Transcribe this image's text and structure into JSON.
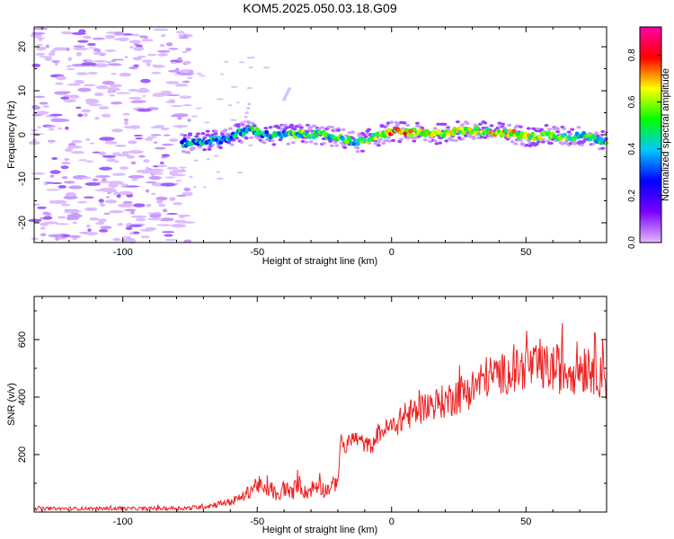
{
  "title": "KOM5.2025.050.03.18.G09",
  "chart_data": [
    {
      "type": "heatmap",
      "xlabel": "Height of straight line (km)",
      "ylabel": "Frequency (Hz)",
      "xlim": [
        -133,
        80
      ],
      "ylim": [
        -24.5,
        24.5
      ],
      "xticks": [
        -100,
        -50,
        0,
        50
      ],
      "yticks": [
        -20,
        -10,
        0,
        10,
        20
      ],
      "colorbar": {
        "label": "Normalized spectral amplitude",
        "range": [
          0,
          0.92
        ],
        "ticks": [
          "0.0",
          "0.2",
          "0.4",
          "0.6",
          "0.8"
        ],
        "colors": [
          "#e6b8ff",
          "#7a00ff",
          "#0000ff",
          "#00c8ff",
          "#00ff00",
          "#ffff00",
          "#ff0000",
          "#ff00aa"
        ]
      },
      "trace": {
        "x": [
          -78,
          -70,
          -62,
          -56,
          -52,
          -48,
          -44,
          -40,
          -30,
          -20,
          -12,
          -6,
          0,
          8,
          15,
          22,
          30,
          38,
          45,
          52,
          58,
          64,
          72,
          80
        ],
        "freq": [
          -2.0,
          -1.5,
          -1.0,
          0.5,
          1.2,
          0.2,
          -0.3,
          0.0,
          0.2,
          -0.6,
          -1.8,
          -0.5,
          0.8,
          0.5,
          0.0,
          0.7,
          1.0,
          0.6,
          0.2,
          -0.5,
          0.0,
          -0.4,
          -0.3,
          -1.5
        ],
        "amp": [
          0.35,
          0.35,
          0.3,
          0.4,
          0.45,
          0.38,
          0.4,
          0.42,
          0.5,
          0.45,
          0.45,
          0.55,
          0.7,
          0.65,
          0.6,
          0.55,
          0.55,
          0.6,
          0.62,
          0.6,
          0.55,
          0.5,
          0.45,
          0.45
        ]
      }
    },
    {
      "type": "line",
      "xlabel": "Height of straight line (km)",
      "ylabel": "SNR (v/v)",
      "xlim": [
        -133,
        80
      ],
      "ylim": [
        0,
        750
      ],
      "xticks": [
        -100,
        -50,
        0,
        50
      ],
      "yticks": [
        200,
        400,
        600
      ],
      "color": "#ee2222",
      "x": [
        -133,
        -110,
        -90,
        -75,
        -68,
        -60,
        -55,
        -50,
        -47,
        -45,
        -42,
        -40,
        -37,
        -35,
        -32,
        -30,
        -27,
        -25,
        -22,
        -20,
        -19,
        -17,
        -15,
        -12,
        -10,
        -7,
        -5,
        -2,
        0,
        5,
        10,
        15,
        20,
        25,
        30,
        35,
        40,
        45,
        50,
        55,
        60,
        65,
        70,
        75,
        80
      ],
      "mean": [
        12,
        12,
        12,
        14,
        22,
        35,
        55,
        100,
        70,
        85,
        45,
        90,
        60,
        110,
        65,
        80,
        95,
        75,
        90,
        105,
        250,
        220,
        260,
        250,
        235,
        230,
        275,
        290,
        295,
        330,
        355,
        375,
        385,
        410,
        430,
        470,
        480,
        485,
        505,
        500,
        500,
        495,
        505,
        520,
        490
      ],
      "spread": [
        6,
        6,
        6,
        8,
        10,
        14,
        18,
        35,
        25,
        30,
        20,
        35,
        25,
        40,
        25,
        30,
        35,
        25,
        30,
        25,
        25,
        30,
        30,
        30,
        30,
        25,
        35,
        35,
        40,
        50,
        55,
        55,
        60,
        70,
        70,
        75,
        70,
        75,
        80,
        80,
        85,
        90,
        95,
        110,
        110
      ]
    }
  ]
}
